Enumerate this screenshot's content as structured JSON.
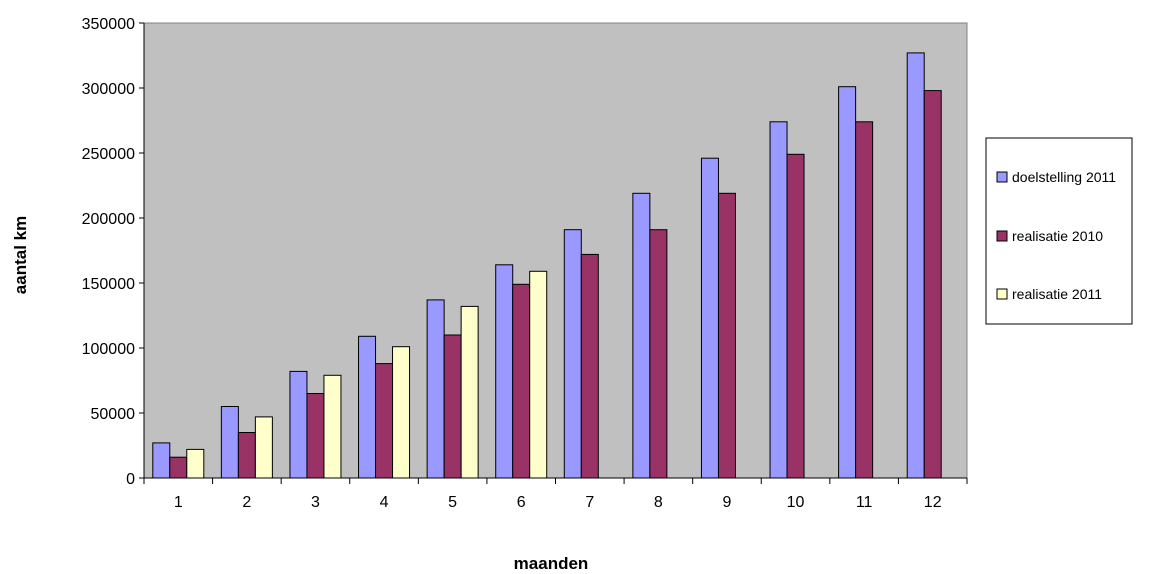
{
  "chart_data": {
    "type": "bar",
    "title": "",
    "xlabel": "maanden",
    "ylabel": "aantal km",
    "ylim": [
      0,
      350000
    ],
    "yticks": [
      0,
      50000,
      100000,
      150000,
      200000,
      250000,
      300000,
      350000
    ],
    "ytick_labels": [
      "0",
      "50000",
      "100000",
      "150000",
      "200000",
      "250000",
      "300000",
      "350000"
    ],
    "categories": [
      "1",
      "2",
      "3",
      "4",
      "5",
      "6",
      "7",
      "8",
      "9",
      "10",
      "11",
      "12"
    ],
    "grid": false,
    "plot_background": "#c0c0c0",
    "legend_position": "right",
    "series": [
      {
        "name": "doelstelling 2011",
        "color": "#9999ff",
        "values": [
          27000,
          55000,
          82000,
          109000,
          137000,
          164000,
          191000,
          219000,
          246000,
          274000,
          301000,
          327000
        ]
      },
      {
        "name": "realisatie 2010",
        "color": "#993366",
        "values": [
          16000,
          35000,
          65000,
          88000,
          110000,
          149000,
          172000,
          191000,
          219000,
          249000,
          274000,
          298000
        ]
      },
      {
        "name": "realisatie 2011",
        "color": "#ffffcc",
        "values": [
          22000,
          47000,
          79000,
          101000,
          132000,
          159000,
          null,
          null,
          null,
          null,
          null,
          null
        ]
      }
    ]
  }
}
